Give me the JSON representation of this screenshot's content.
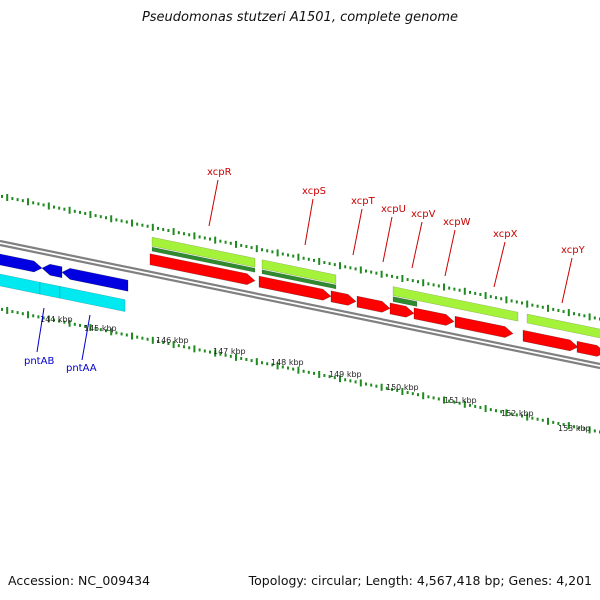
{
  "header": {
    "title": "Pseudomonas stutzeri A1501, complete genome"
  },
  "footer": {
    "accession": "Accession: NC_009434",
    "summary": "Topology: circular; Length: 4,567,418 bp; Genes: 4,201"
  },
  "colors": {
    "cds_forward": "#ff0000",
    "cds_reverse": "#0000e0",
    "rna_forward": "#a4f23a",
    "rna_reverse": "#00e8f0",
    "gc_band": "#2f8a2f",
    "backbone": "#808080",
    "ticks": "#1f8a1f",
    "label_forward": "#cc0000",
    "label_reverse": "#0000cc"
  },
  "map": {
    "kbp_labels": [
      "144 kbp",
      "145 kbp",
      "146 kbp",
      "147 kbp",
      "148 kbp",
      "149 kbp",
      "150 kbp",
      "151 kbp",
      "152 kbp",
      "153 kbp"
    ],
    "gene_labels_forward": [
      "xcpR",
      "xcpS",
      "xcpT",
      "xcpU",
      "xcpV",
      "xcpW",
      "xcpX",
      "xcpY"
    ],
    "gene_labels_reverse": [
      "pntAB",
      "pntAA"
    ]
  }
}
